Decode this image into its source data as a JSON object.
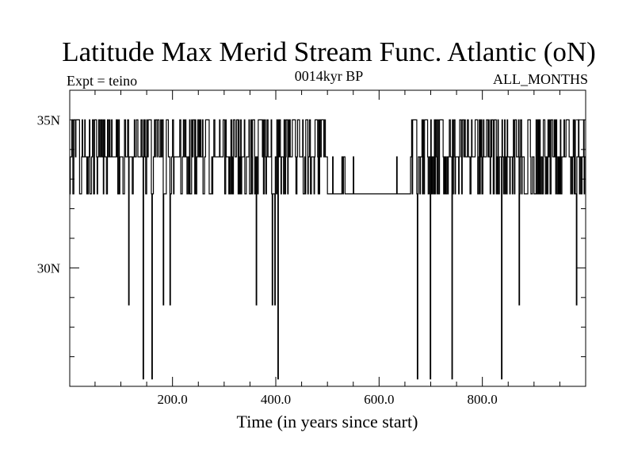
{
  "chart_data": {
    "type": "line",
    "title": "Latitude Max Merid Stream Func. Atlantic (oN)",
    "subtitle_left": "Expt = teino",
    "subtitle_center": "0014kyr BP",
    "subtitle_right": "ALL_MONTHS",
    "xlabel": "Time (in years since start)",
    "ylabel": "",
    "xlim": [
      1,
      1000
    ],
    "ylim": [
      26,
      36
    ],
    "x_ticks": [
      200,
      400,
      600,
      800
    ],
    "x_tick_labels": [
      "200.0",
      "400.0",
      "600.0",
      "800.0"
    ],
    "y_ticks": [
      30,
      35
    ],
    "y_tick_labels": [
      "30N",
      "35N"
    ],
    "x_minor_step": 50,
    "y_minor_step": 1,
    "levels": [
      35.0,
      33.75,
      32.5
    ],
    "dips": [
      {
        "x": 115,
        "y": 28.75
      },
      {
        "x": 143,
        "y": 26.25
      },
      {
        "x": 160,
        "y": 26.25
      },
      {
        "x": 182,
        "y": 28.75
      },
      {
        "x": 195,
        "y": 28.75
      },
      {
        "x": 362,
        "y": 28.75
      },
      {
        "x": 393,
        "y": 28.75
      },
      {
        "x": 398,
        "y": 28.75
      },
      {
        "x": 404,
        "y": 26.25
      },
      {
        "x": 674,
        "y": 26.25
      },
      {
        "x": 699,
        "y": 26.25
      },
      {
        "x": 741,
        "y": 26.25
      },
      {
        "x": 837,
        "y": 26.25
      },
      {
        "x": 871,
        "y": 28.75
      },
      {
        "x": 982,
        "y": 28.75
      }
    ],
    "quiet_intervals": [
      [
        500,
        660
      ],
      [
        555,
        566
      ]
    ],
    "grid": false,
    "series": [
      {
        "name": "",
        "values": [],
        "color": "#000000"
      }
    ]
  }
}
